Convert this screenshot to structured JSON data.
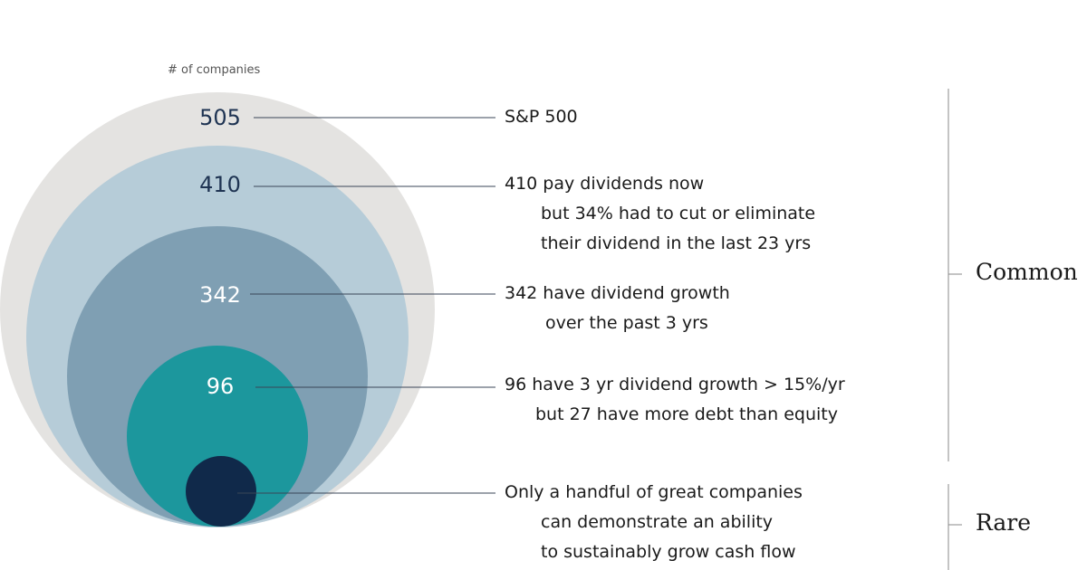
{
  "caption": "# of companies",
  "tiers": [
    {
      "count": "505",
      "fill": "#e4e3e1",
      "count_color": "#1e3352",
      "lines": [
        "S&P 500"
      ]
    },
    {
      "count": "410",
      "fill": "#b6ccd8",
      "count_color": "#1e3352",
      "lines": [
        "410 pay dividends now",
        "but 34% had to cut or eliminate",
        "their dividend in the last 23 yrs"
      ]
    },
    {
      "count": "342",
      "fill": "#7f9fb3",
      "count_color": "#ffffff",
      "lines": [
        "342 have dividend growth",
        "over the past 3 yrs"
      ]
    },
    {
      "count": "96",
      "fill": "#1c979d",
      "count_color": "#ffffff",
      "lines": [
        "96 have 3 yr dividend growth > 15%/yr",
        "but 27 have more debt than equity"
      ]
    },
    {
      "count": "",
      "fill": "#10294a",
      "count_color": "#ffffff",
      "lines": [
        "Only a handful of great companies",
        "can demonstrate an ability",
        "to sustainably grow cash flow"
      ]
    }
  ],
  "categories": {
    "common": "Common",
    "rare": "Rare"
  },
  "colors": {
    "leader_line": "#3a4657",
    "bracket": "#8a8a8a"
  }
}
